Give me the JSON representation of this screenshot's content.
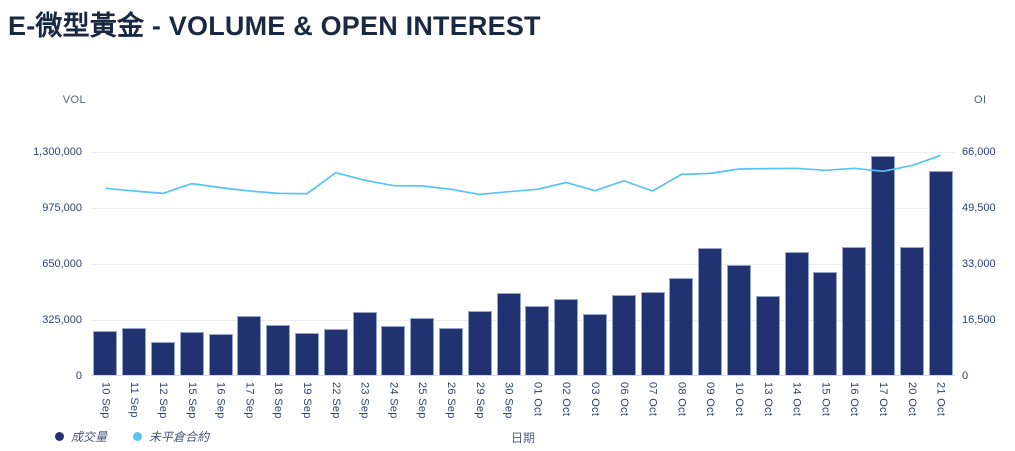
{
  "title": "E-微型黃金 - VOLUME & OPEN INTEREST",
  "colors": {
    "title": "#1a2942",
    "bar_fill": "#213271",
    "bar_border": "#96a5cd",
    "line": "#56c5f2",
    "tick_text": "#2e4172",
    "axis_corner_text": "#51607f",
    "gridline": "#ededed",
    "background": "#ffffff"
  },
  "legend": {
    "items": [
      {
        "label": "成交量",
        "color": "#213271"
      },
      {
        "label": "未平倉合約",
        "color": "#56c5f2"
      }
    ]
  },
  "chart_data": {
    "type": "bar",
    "title": "E-微型黃金 - VOLUME & OPEN INTEREST",
    "xlabel": "日期",
    "grid": true,
    "legend_position": "bottom-left",
    "left_axis": {
      "title": "VOL",
      "min": 0,
      "max": 1300000,
      "tick_labels_top_down": [
        "1,300,000",
        "975,000",
        "650,000",
        "325,000",
        "0"
      ]
    },
    "right_axis": {
      "title": "OI",
      "min": 0,
      "max": 66000,
      "tick_labels_top_down": [
        "66,000",
        "49,500",
        "33,000",
        "16,500",
        "0"
      ]
    },
    "categories": [
      "10 Sep",
      "11 Sep",
      "12 Sep",
      "15 Sep",
      "16 Sep",
      "17 Sep",
      "18 Sep",
      "19 Sep",
      "22 Sep",
      "23 Sep",
      "24 Sep",
      "25 Sep",
      "26 Sep",
      "29 Sep",
      "30 Sep",
      "01 Oct",
      "02 Oct",
      "03 Oct",
      "06 Oct",
      "07 Oct",
      "08 Oct",
      "09 Oct",
      "10 Oct",
      "13 Oct",
      "14 Oct",
      "15 Oct",
      "16 Oct",
      "17 Oct",
      "20 Oct",
      "21 Oct"
    ],
    "series": [
      {
        "name": "成交量",
        "type": "bar",
        "axis": "left",
        "values": [
          258000,
          271000,
          190000,
          251000,
          238000,
          344000,
          290000,
          244000,
          267000,
          364000,
          283000,
          329000,
          273000,
          370000,
          476000,
          399000,
          441000,
          354000,
          466000,
          483000,
          561000,
          737000,
          640000,
          460000,
          712000,
          600000,
          741000,
          1269000,
          745000,
          1186000
        ]
      },
      {
        "name": "未平倉合約",
        "type": "line",
        "axis": "right",
        "values": [
          55300,
          54500,
          53800,
          56700,
          55500,
          54500,
          53800,
          53700,
          59900,
          57700,
          56100,
          56000,
          55000,
          53500,
          54300,
          55000,
          57000,
          54600,
          57500,
          54500,
          59400,
          59700,
          61000,
          61100,
          61200,
          60600,
          61200,
          60300,
          62000,
          65000
        ]
      }
    ]
  }
}
